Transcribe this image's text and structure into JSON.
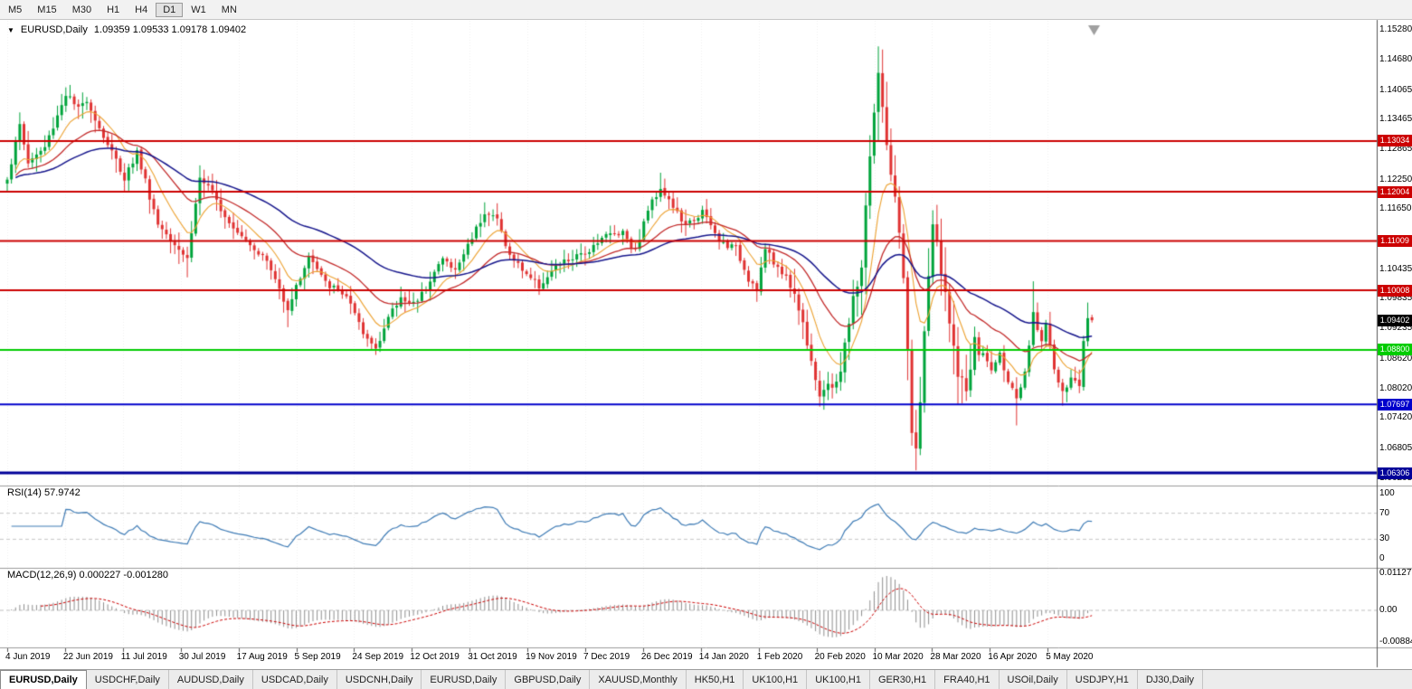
{
  "toolbar": {
    "buttons": [
      "M5",
      "M15",
      "M30",
      "H1",
      "H4",
      "D1",
      "W1",
      "MN"
    ],
    "active": "D1"
  },
  "chart_header": {
    "dropdown_icon": "▼",
    "symbol_period": "EURUSD,Daily",
    "ohlc": "1.09359 1.09533 1.09178 1.09402"
  },
  "indicators": {
    "rsi_label": "RSI(14) 57.9742",
    "macd_label": "MACD(12,26,9) 0.000227 -0.001280"
  },
  "price_axis": {
    "labels": [
      {
        "text": "1.15280",
        "value": 1.1528
      },
      {
        "text": "1.14680",
        "value": 1.1468
      },
      {
        "text": "1.14065",
        "value": 1.14065
      },
      {
        "text": "1.13465",
        "value": 1.13465
      },
      {
        "text": "1.12865",
        "value": 1.12865
      },
      {
        "text": "1.12250",
        "value": 1.1225
      },
      {
        "text": "1.11650",
        "value": 1.1165
      },
      {
        "text": "1.10435",
        "value": 1.10435
      },
      {
        "text": "1.09835",
        "value": 1.09835
      },
      {
        "text": "1.09235",
        "value": 1.09235
      },
      {
        "text": "1.08620",
        "value": 1.0862
      },
      {
        "text": "1.08020",
        "value": 1.0802
      },
      {
        "text": "1.07420",
        "value": 1.0742
      },
      {
        "text": "1.06805",
        "value": 1.06805
      },
      {
        "text": "1.06205",
        "value": 1.06205
      }
    ]
  },
  "levels": [
    {
      "label": "1.13034",
      "price": 1.13034,
      "color": "#cc0000",
      "width": 2
    },
    {
      "label": "1.12004",
      "price": 1.12004,
      "color": "#cc0000",
      "width": 2
    },
    {
      "label": "1.11009",
      "price": 1.11009,
      "color": "#cc0000",
      "width": 2
    },
    {
      "label": "1.10008",
      "price": 1.10008,
      "color": "#cc0000",
      "width": 2
    },
    {
      "label": "1.08800",
      "price": 1.088,
      "color": "#00cc00",
      "width": 2
    },
    {
      "label": "1.07697",
      "price": 1.07697,
      "color": "#0000cc",
      "width": 2
    },
    {
      "label": "1.06306",
      "price": 1.06306,
      "color": "#000099",
      "width": 3
    }
  ],
  "current_price": {
    "label": "1.09402",
    "price": 1.09402,
    "color": "#000000"
  },
  "rsi_axis": [
    {
      "text": "100",
      "value": 100
    },
    {
      "text": "70",
      "value": 70
    },
    {
      "text": "30",
      "value": 30
    },
    {
      "text": "0",
      "value": 0
    }
  ],
  "macd_axis": [
    {
      "text": "0.011277",
      "value": 0.011277
    },
    {
      "text": "0.00",
      "value": 0
    },
    {
      "text": "-0.00884",
      "value": -0.00884
    }
  ],
  "time_axis": {
    "dates": [
      "4 Jun 2019",
      "22 Jun 2019",
      "11 Jul 2019",
      "30 Jul 2019",
      "17 Aug 2019",
      "5 Sep 2019",
      "24 Sep 2019",
      "12 Oct 2019",
      "31 Oct 2019",
      "19 Nov 2019",
      "7 Dec 2019",
      "26 Dec 2019",
      "14 Jan 2020",
      "1 Feb 2020",
      "20 Feb 2020",
      "10 Mar 2020",
      "28 Mar 2020",
      "16 Apr 2020",
      "5 May 2020"
    ]
  },
  "tabs": {
    "items": [
      "EURUSD,Daily",
      "USDCHF,Daily",
      "AUDUSD,Daily",
      "USDCAD,Daily",
      "USDCNH,Daily",
      "EURUSD,Daily",
      "GBPUSD,Daily",
      "XAUUSD,Monthly",
      "HK50,H1",
      "UK100,H1",
      "UK100,H1",
      "GER30,H1",
      "FRA40,H1",
      "USOil,Daily",
      "USDJPY,H1",
      "DJ30,Daily"
    ],
    "active_index": 0
  },
  "chart_data": {
    "type": "candlestick",
    "symbol": "EURUSD",
    "period": "Daily",
    "bars": 260,
    "y_range": [
      1.0607,
      1.1545
    ],
    "last_close": 1.09402,
    "close_waypoints": [
      [
        0,
        1.1225
      ],
      [
        3,
        1.1335
      ],
      [
        5,
        1.126
      ],
      [
        9,
        1.129
      ],
      [
        14,
        1.14
      ],
      [
        17,
        1.1365
      ],
      [
        19,
        1.139
      ],
      [
        22,
        1.133
      ],
      [
        28,
        1.123
      ],
      [
        31,
        1.128
      ],
      [
        36,
        1.1135
      ],
      [
        39,
        1.111
      ],
      [
        43,
        1.1065
      ],
      [
        46,
        1.123
      ],
      [
        49,
        1.1195
      ],
      [
        53,
        1.114
      ],
      [
        57,
        1.1105
      ],
      [
        62,
        1.106
      ],
      [
        67,
        1.0965
      ],
      [
        72,
        1.107
      ],
      [
        76,
        1.1015
      ],
      [
        81,
        1.099
      ],
      [
        85,
        1.091
      ],
      [
        88,
        1.0885
      ],
      [
        91,
        1.0945
      ],
      [
        94,
        1.0985
      ],
      [
        98,
        1.0975
      ],
      [
        101,
        1.1025
      ],
      [
        104,
        1.1065
      ],
      [
        107,
        1.104
      ],
      [
        111,
        1.111
      ],
      [
        114,
        1.116
      ],
      [
        117,
        1.1145
      ],
      [
        120,
        1.107
      ],
      [
        124,
        1.1035
      ],
      [
        127,
        1.101
      ],
      [
        132,
        1.1055
      ],
      [
        138,
        1.1075
      ],
      [
        142,
        1.111
      ],
      [
        147,
        1.112
      ],
      [
        150,
        1.108
      ],
      [
        153,
        1.1165
      ],
      [
        156,
        1.121
      ],
      [
        159,
        1.117
      ],
      [
        162,
        1.113
      ],
      [
        166,
        1.116
      ],
      [
        170,
        1.11
      ],
      [
        174,
        1.1085
      ],
      [
        177,
        1.1025
      ],
      [
        179,
        1.1005
      ],
      [
        181,
        1.1085
      ],
      [
        183,
        1.1055
      ],
      [
        185,
        1.104
      ],
      [
        188,
        1.0995
      ],
      [
        191,
        1.09
      ],
      [
        194,
        1.079
      ],
      [
        197,
        1.0805
      ],
      [
        199,
        1.084
      ],
      [
        202,
        1.098
      ],
      [
        204,
        1.105
      ],
      [
        206,
        1.128
      ],
      [
        208,
        1.144
      ],
      [
        209,
        1.136
      ],
      [
        210,
        1.13
      ],
      [
        212,
        1.118
      ],
      [
        214,
        1.102
      ],
      [
        215,
        1.087
      ],
      [
        216,
        1.07
      ],
      [
        217,
        1.069
      ],
      [
        218,
        1.078
      ],
      [
        220,
        1.103
      ],
      [
        221,
        1.114
      ],
      [
        223,
        1.103
      ],
      [
        225,
        1.095
      ],
      [
        227,
        1.082
      ],
      [
        229,
        1.08
      ],
      [
        231,
        1.089
      ],
      [
        233,
        1.087
      ],
      [
        235,
        1.084
      ],
      [
        237,
        1.087
      ],
      [
        239,
        1.082
      ],
      [
        241,
        1.0775
      ],
      [
        243,
        1.083
      ],
      [
        245,
        1.095
      ],
      [
        247,
        1.09
      ],
      [
        248,
        1.094
      ],
      [
        250,
        1.084
      ],
      [
        252,
        1.079
      ],
      [
        254,
        1.082
      ],
      [
        256,
        1.081
      ],
      [
        257,
        1.09
      ],
      [
        258,
        1.095
      ],
      [
        259,
        1.094
      ]
    ],
    "extreme_spikes": [
      {
        "i": 3,
        "high": 1.1348
      },
      {
        "i": 14,
        "high": 1.1412
      },
      {
        "i": 43,
        "low": 1.1027
      },
      {
        "i": 67,
        "low": 1.0926
      },
      {
        "i": 88,
        "low": 1.0879
      },
      {
        "i": 114,
        "high": 1.1179
      },
      {
        "i": 156,
        "high": 1.1239
      },
      {
        "i": 194,
        "low": 1.0778
      },
      {
        "i": 208,
        "high": 1.1495
      },
      {
        "i": 217,
        "low": 1.0636
      },
      {
        "i": 221,
        "high": 1.1147
      },
      {
        "i": 241,
        "low": 1.0727
      },
      {
        "i": 245,
        "high": 1.1019
      },
      {
        "i": 252,
        "low": 1.0767
      },
      {
        "i": 258,
        "high": 1.0976
      }
    ],
    "volatile_range": [
      188,
      232
    ],
    "ma_periods": {
      "fast": 10,
      "mid": 25,
      "slow": 55
    },
    "rsi_period": 14,
    "rsi_guides": [
      70,
      30
    ],
    "macd_params": [
      12,
      26,
      9
    ],
    "colors": {
      "bull": "#00a43b",
      "bear": "#e03232",
      "ma_fast": "#eda231",
      "ma_mid": "#c32a2a",
      "ma_slow": "#16168c",
      "rsi": "#3f7cb6",
      "macd_hist": "#8f8f8f",
      "macd_signal": "#cc0000",
      "grid": "#efefef",
      "separator": "#9c9c9c"
    }
  }
}
